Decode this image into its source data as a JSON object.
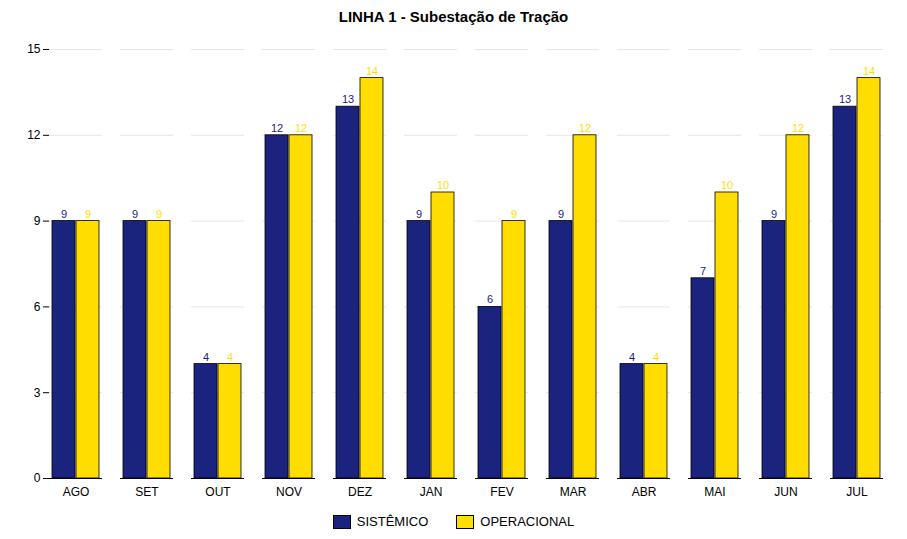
{
  "chart_data": {
    "type": "bar",
    "title": "LINHA 1 - Subestação de Tração",
    "categories": [
      "AGO",
      "SET",
      "OUT",
      "NOV",
      "DEZ",
      "JAN",
      "FEV",
      "MAR",
      "ABR",
      "MAI",
      "JUN",
      "JUL"
    ],
    "series": [
      {
        "name": "SISTÊMICO",
        "color": "#1a237e",
        "values": [
          9,
          9,
          4,
          12,
          13,
          9,
          6,
          9,
          4,
          7,
          9,
          13
        ]
      },
      {
        "name": "OPERACIONAL",
        "color": "#ffdd00",
        "values": [
          9,
          9,
          4,
          12,
          14,
          10,
          9,
          12,
          4,
          10,
          12,
          14
        ]
      }
    ],
    "ylim": [
      0,
      15
    ],
    "yticks": [
      0,
      3,
      6,
      9,
      12,
      15
    ],
    "grid": true,
    "legend": "bottom",
    "data_labels": true
  }
}
